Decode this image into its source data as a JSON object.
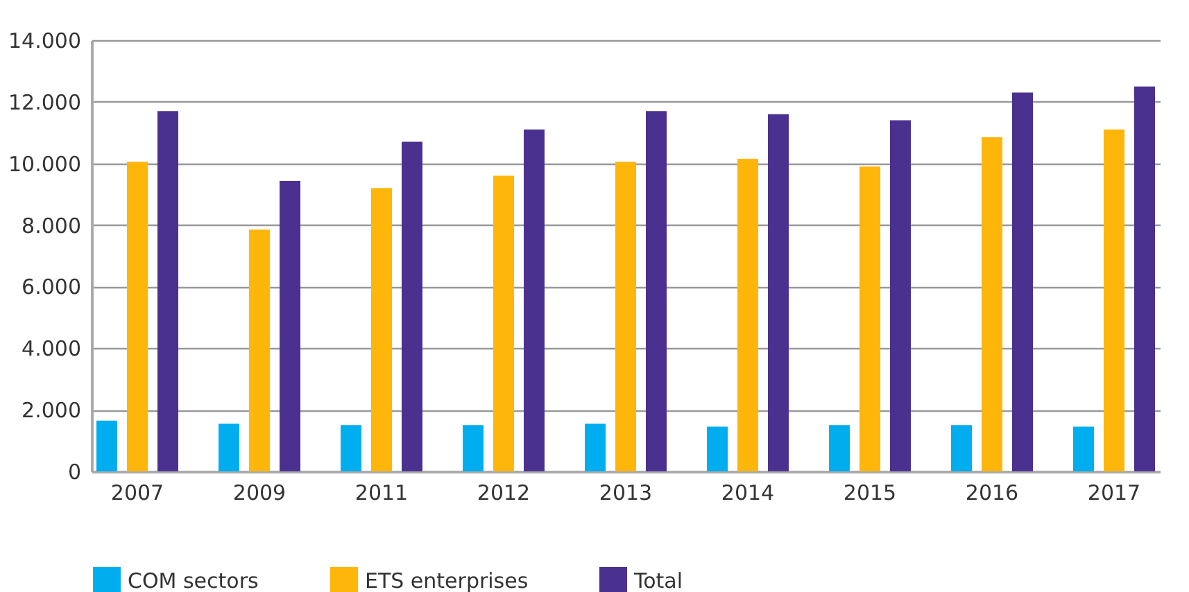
{
  "chart_data": {
    "type": "bar",
    "categories": [
      "2007",
      "2009",
      "2011",
      "2012",
      "2013",
      "2014",
      "2015",
      "2016",
      "2017"
    ],
    "series": [
      {
        "name": "COM sectors",
        "color": "#00aeef",
        "values": [
          1650,
          1550,
          1500,
          1500,
          1550,
          1450,
          1500,
          1500,
          1450
        ]
      },
      {
        "name": "ETS enterprises",
        "color": "#ffb60b",
        "values": [
          10050,
          7850,
          9200,
          9600,
          10050,
          10150,
          9900,
          10850,
          11100
        ]
      },
      {
        "name": "Total",
        "color": "#4b318f",
        "values": [
          11700,
          9430,
          10700,
          11100,
          11700,
          11600,
          11400,
          12300,
          12500
        ]
      }
    ],
    "ylim": [
      0,
      14000
    ],
    "yticks": [
      {
        "value": 0,
        "label": "0"
      },
      {
        "value": 2000,
        "label": "2.000"
      },
      {
        "value": 4000,
        "label": "4.000"
      },
      {
        "value": 6000,
        "label": "6.000"
      },
      {
        "value": 8000,
        "label": "8.000"
      },
      {
        "value": 10000,
        "label": "10.000"
      },
      {
        "value": 12000,
        "label": "12.000"
      },
      {
        "value": 14000,
        "label": "14.000"
      }
    ],
    "grid": "y",
    "legend": "bottom"
  }
}
